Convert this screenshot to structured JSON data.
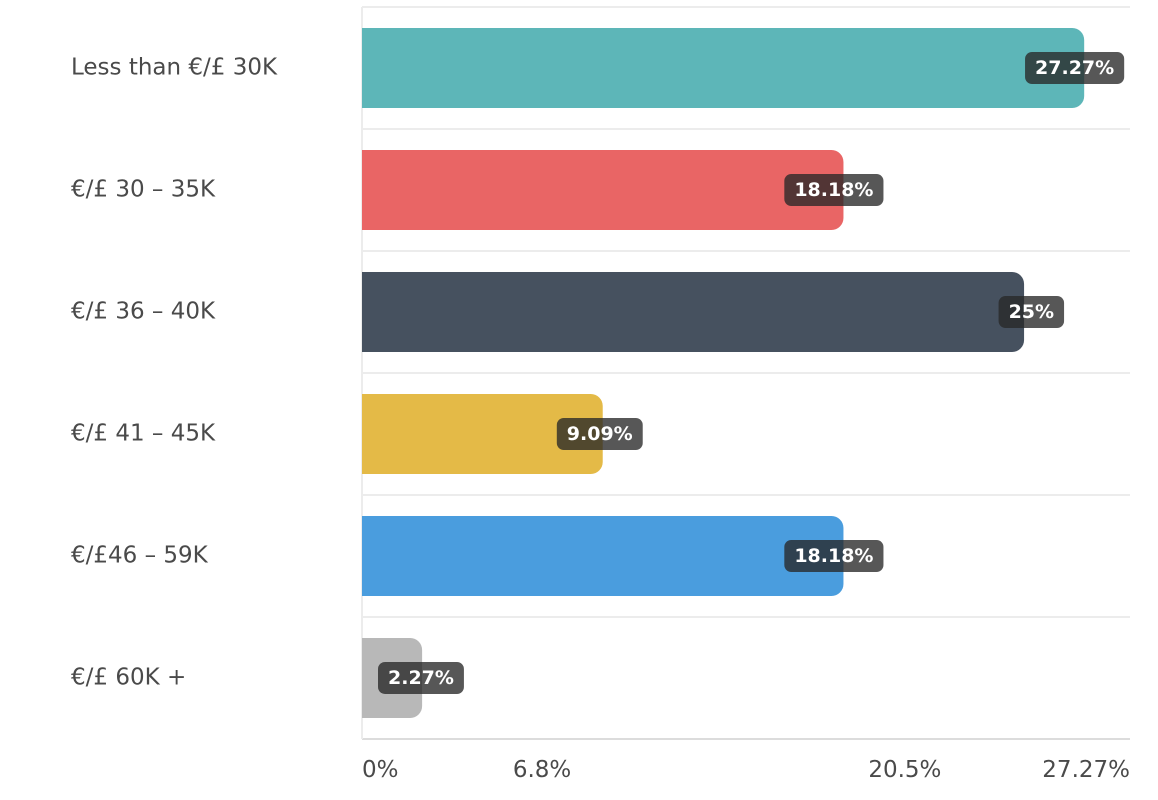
{
  "chart_data": {
    "type": "bar",
    "orientation": "horizontal",
    "title": "",
    "xlabel": "",
    "ylabel": "",
    "categories": [
      "Less than €/£ 30K",
      "€/£ 30 – 35K",
      "€/£ 36 – 40K",
      "€/£ 41 – 45K",
      "€/£46 – 59K",
      "€/£ 60K +"
    ],
    "values": [
      27.27,
      18.18,
      25,
      9.09,
      18.18,
      2.27
    ],
    "data_labels": [
      "27.27%",
      "18.18%",
      "25%",
      "9.09%",
      "18.18%",
      "2.27%"
    ],
    "colors": [
      "#5db6b8",
      "#e96565",
      "#46515f",
      "#e4ba47",
      "#4a9dde",
      "#b8b8b8"
    ],
    "xlim": [
      0,
      29
    ],
    "ticks": [
      {
        "value": 0,
        "label": "0%"
      },
      {
        "value": 6.8,
        "label": "6.8%"
      },
      {
        "value": 20.5,
        "label": "20.5%"
      },
      {
        "value": 27.27,
        "label": "27.27%"
      }
    ],
    "grid": true,
    "legend": "none"
  }
}
